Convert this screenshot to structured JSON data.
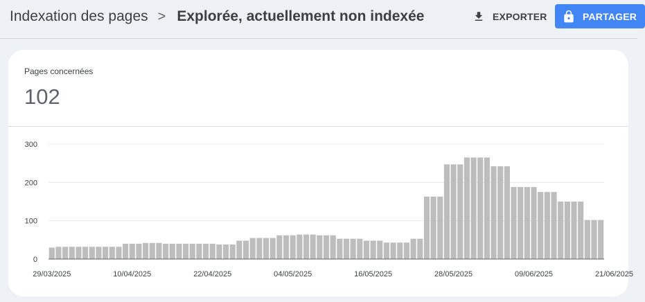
{
  "breadcrumb": {
    "root": "Indexation des pages",
    "separator": ">",
    "current": "Explorée, actuellement non indexée"
  },
  "toolbar": {
    "export_label": "EXPORTER",
    "export_icon": "download-icon",
    "share_label": "PARTAGER",
    "share_icon": "lock-icon"
  },
  "metric": {
    "label": "Pages concernées",
    "value": "102"
  },
  "colors": {
    "share_button": "#4285f4",
    "bar": "#bdbdbd",
    "card_background": "#ffffff",
    "page_background": "#eef1f6"
  },
  "chart_data": {
    "type": "bar",
    "ylim": [
      0,
      300
    ],
    "y_ticks": [
      0,
      100,
      200,
      300
    ],
    "grid": true,
    "x_tick_labels": [
      "29/03/2025",
      "10/04/2025",
      "22/04/2025",
      "04/05/2025",
      "16/05/2025",
      "28/05/2025",
      "09/06/2025",
      "21/06/2025"
    ],
    "x_tick_index": [
      0,
      12,
      24,
      36,
      48,
      60,
      72,
      84
    ],
    "values": [
      30,
      32,
      32,
      32,
      32,
      32,
      32,
      32,
      32,
      32,
      32,
      40,
      40,
      40,
      42,
      42,
      42,
      40,
      40,
      40,
      40,
      40,
      40,
      40,
      40,
      38,
      38,
      38,
      48,
      48,
      55,
      55,
      55,
      55,
      62,
      62,
      62,
      64,
      64,
      64,
      62,
      62,
      62,
      53,
      53,
      53,
      53,
      48,
      48,
      48,
      43,
      43,
      43,
      43,
      53,
      53,
      163,
      163,
      163,
      247,
      247,
      247,
      265,
      265,
      265,
      265,
      242,
      242,
      242,
      188,
      188,
      188,
      188,
      175,
      175,
      175,
      150,
      150,
      150,
      150,
      102,
      102,
      102
    ]
  }
}
